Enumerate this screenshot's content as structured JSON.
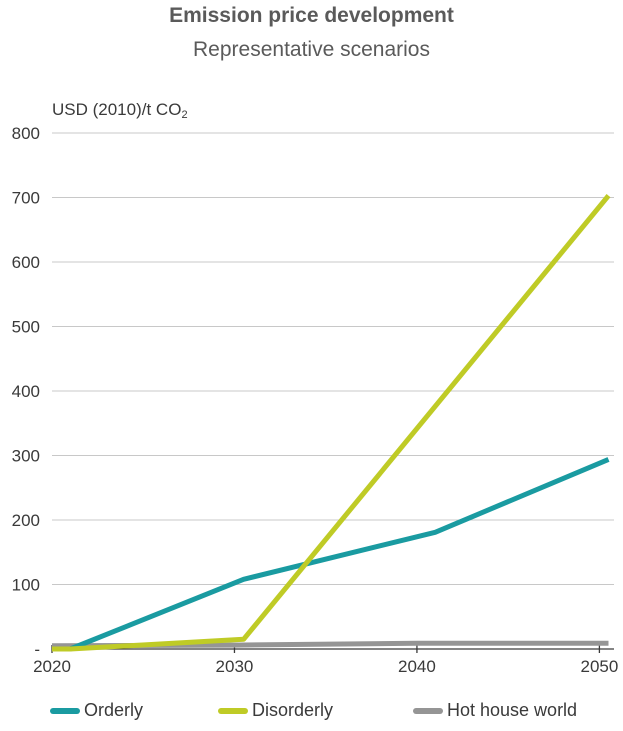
{
  "chart_data": {
    "type": "line",
    "title": "Emission price development",
    "subtitle": "Representative scenarios",
    "ylabel_main": "USD (2010)/t CO",
    "ylabel_sub": "2",
    "xlabel": "",
    "x": [
      2020,
      2030,
      2040,
      2050
    ],
    "ylim": [
      0,
      800
    ],
    "yticks": [
      0,
      100,
      200,
      300,
      400,
      500,
      600,
      700,
      800
    ],
    "ytick_labels": [
      "-",
      "100",
      "200",
      "300",
      "400",
      "500",
      "600",
      "700",
      "800"
    ],
    "xticks": [
      2020,
      2030,
      2040,
      2050
    ],
    "xtick_labels": [
      "2020",
      "2030",
      "2040",
      "2050"
    ],
    "grid": true,
    "legend_position": "bottom",
    "series": [
      {
        "name": "Orderly",
        "color": "#1a9ba1",
        "points": [
          [
            2020,
            0
          ],
          [
            2021,
            0
          ],
          [
            2030.5,
            108
          ],
          [
            2041,
            181
          ],
          [
            2050.5,
            294
          ]
        ]
      },
      {
        "name": "Disorderly",
        "color": "#bfcb26",
        "points": [
          [
            2020,
            0
          ],
          [
            2021,
            0
          ],
          [
            2030.5,
            15
          ],
          [
            2050.5,
            703
          ]
        ]
      },
      {
        "name": "Hot house world",
        "color": "#959595",
        "points": [
          [
            2020,
            5
          ],
          [
            2030,
            6
          ],
          [
            2040,
            9
          ],
          [
            2050.5,
            9
          ]
        ]
      }
    ]
  }
}
